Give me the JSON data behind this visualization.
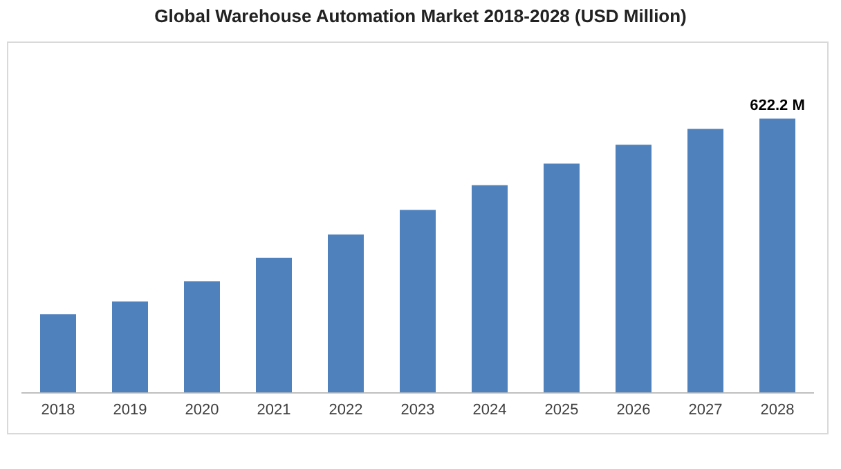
{
  "chart_data": {
    "type": "bar",
    "title": "Global Warehouse Automation Market 2018-2028 (USD Million)",
    "categories": [
      "2018",
      "2019",
      "2020",
      "2021",
      "2022",
      "2023",
      "2024",
      "2025",
      "2026",
      "2027",
      "2028"
    ],
    "values": [
      178,
      207,
      253,
      306,
      359,
      415,
      471,
      520,
      563,
      599,
      622.2
    ],
    "value_labels": [
      null,
      null,
      null,
      null,
      null,
      null,
      null,
      null,
      null,
      null,
      "622.2 M"
    ],
    "color": "#4f81bd",
    "tick_labels": "x",
    "grid": false,
    "legend": false
  }
}
